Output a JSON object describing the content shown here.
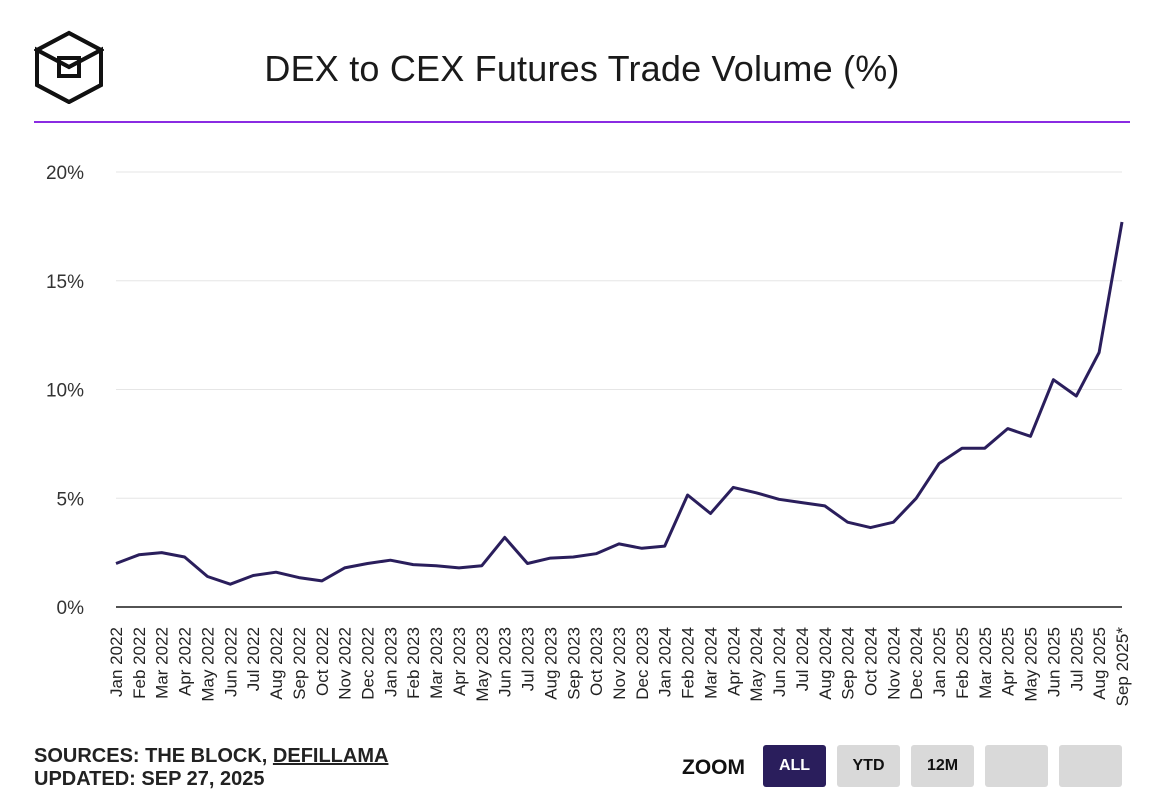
{
  "title": "DEX to CEX Futures Trade Volume (%)",
  "footer": {
    "sources_prefix": "SOURCES: THE BLOCK, ",
    "sources_link": "DEFILLAMA",
    "updated": "UPDATED: SEP 27, 2025"
  },
  "zoom": {
    "label": "ZOOM",
    "buttons": [
      "ALL",
      "YTD",
      "12M",
      "",
      ""
    ],
    "active": "ALL"
  },
  "colors": {
    "line": "#2a1e5c",
    "accent": "#8a2be2",
    "active_button": "#2a1e5c",
    "button": "#d9d9d9"
  },
  "chart_data": {
    "type": "line",
    "categories": [
      "Jan 2022",
      "Feb 2022",
      "Mar 2022",
      "Apr 2022",
      "May 2022",
      "Jun 2022",
      "Jul 2022",
      "Aug 2022",
      "Sep 2022",
      "Oct 2022",
      "Nov 2022",
      "Dec 2022",
      "Jan 2023",
      "Feb 2023",
      "Mar 2023",
      "Apr 2023",
      "May 2023",
      "Jun 2023",
      "Jul 2023",
      "Aug 2023",
      "Sep 2023",
      "Oct 2023",
      "Nov 2023",
      "Dec 2023",
      "Jan 2024",
      "Feb 2024",
      "Mar 2024",
      "Apr 2024",
      "May 2024",
      "Jun 2024",
      "Jul 2024",
      "Aug 2024",
      "Sep 2024",
      "Oct 2024",
      "Nov 2024",
      "Dec 2024",
      "Jan 2025",
      "Feb 2025",
      "Mar 2025",
      "Apr 2025",
      "May 2025",
      "Jun 2025",
      "Jul 2025",
      "Aug 2025",
      "Sep 2025*"
    ],
    "values": [
      2.0,
      2.4,
      2.5,
      2.3,
      1.4,
      1.05,
      1.45,
      1.6,
      1.35,
      1.2,
      1.8,
      2.0,
      2.15,
      1.95,
      1.9,
      1.8,
      1.9,
      3.2,
      2.0,
      2.25,
      2.3,
      2.45,
      2.9,
      2.7,
      2.8,
      5.15,
      4.3,
      5.5,
      5.25,
      4.95,
      4.8,
      4.65,
      3.9,
      3.65,
      3.9,
      5.0,
      6.6,
      7.3,
      7.3,
      8.2,
      7.85,
      10.45,
      9.7,
      11.7,
      17.7
    ],
    "ylim": [
      0,
      20
    ],
    "yticks": [
      0,
      5,
      10,
      15,
      20
    ],
    "ytick_labels": [
      "0%",
      "5%",
      "10%",
      "15%",
      "20%"
    ],
    "grid": true
  }
}
